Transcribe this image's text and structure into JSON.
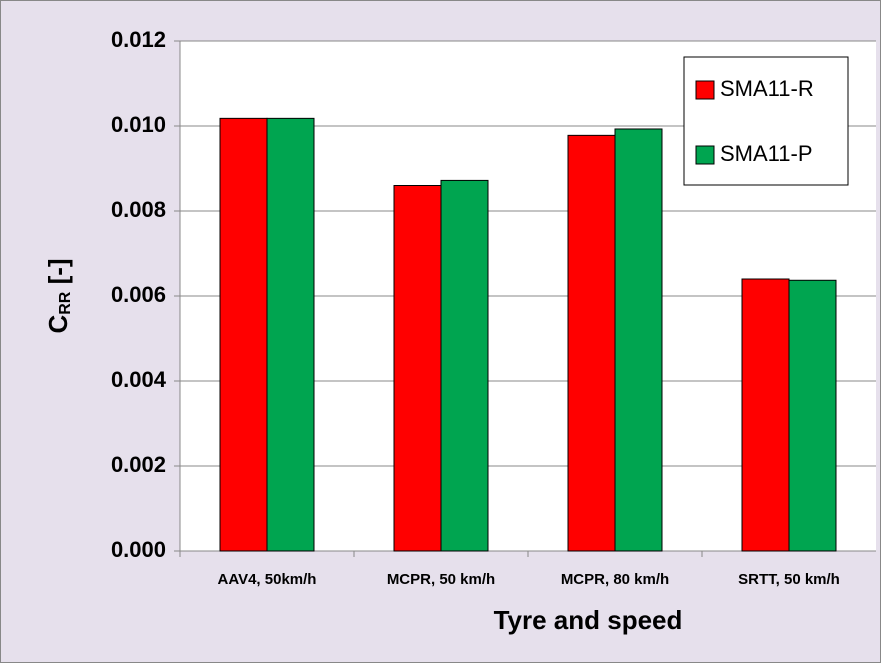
{
  "chart_data": {
    "type": "bar",
    "xlabel": "Tyre and speed",
    "ylabel": [
      "C",
      "RR",
      " [-]"
    ],
    "categories": [
      "AAV4, 50km/h",
      "MCPR, 50 km/h",
      "MCPR, 80 km/h",
      "SRTT, 50 km/h"
    ],
    "series": [
      {
        "name": "SMA11-R",
        "color": "#ff0000",
        "values": [
          0.01018,
          0.0086,
          0.00978,
          0.0064
        ]
      },
      {
        "name": "SMA11-P",
        "color": "#00a550",
        "values": [
          0.01018,
          0.00872,
          0.00993,
          0.00637
        ]
      }
    ],
    "ylim": [
      0,
      0.012
    ],
    "yticks": [
      {
        "value": 0,
        "label": "0.000"
      },
      {
        "value": 0.002,
        "label": "0.002"
      },
      {
        "value": 0.004,
        "label": "0.004"
      },
      {
        "value": 0.006,
        "label": "0.006"
      },
      {
        "value": 0.008,
        "label": "0.008"
      },
      {
        "value": 0.01,
        "label": "0.010"
      },
      {
        "value": 0.012,
        "label": "0.012"
      }
    ],
    "grid": true,
    "legend": "upper right"
  }
}
